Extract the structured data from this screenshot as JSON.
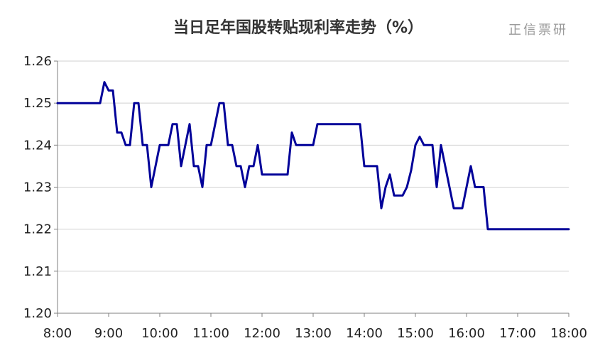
{
  "chart_data": {
    "type": "line",
    "title": "当日足年国股转贴现利率走势（%）",
    "watermark": "正信票研",
    "xlabel": "",
    "ylabel": "",
    "x_tick_labels": [
      "8:00",
      "9:00",
      "10:00",
      "11:00",
      "12:00",
      "13:00",
      "14:00",
      "15:00",
      "16:00",
      "17:00",
      "18:00"
    ],
    "y_tick_labels": [
      "1.20",
      "1.21",
      "1.22",
      "1.23",
      "1.24",
      "1.25",
      "1.26"
    ],
    "xlim": [
      "8:00",
      "18:00"
    ],
    "ylim": [
      1.2,
      1.26
    ],
    "grid": "horizontal",
    "line_color": "#000099",
    "series": [
      {
        "x": [
          "8:00",
          "8:50",
          "8:55",
          "9:00",
          "9:05",
          "9:10",
          "9:15",
          "9:20",
          "9:25",
          "9:30",
          "9:35",
          "9:40",
          "9:45",
          "9:50",
          "9:55",
          "10:00",
          "10:05",
          "10:10",
          "10:15",
          "10:20",
          "10:25",
          "10:30",
          "10:35",
          "10:40",
          "10:45",
          "10:50",
          "10:55",
          "11:00",
          "11:05",
          "11:10",
          "11:15",
          "11:20",
          "11:25",
          "11:30",
          "11:35",
          "11:40",
          "11:45",
          "11:50",
          "11:55",
          "12:00",
          "12:05",
          "12:10",
          "12:15",
          "12:20",
          "12:25",
          "12:30",
          "12:35",
          "12:40",
          "12:45",
          "12:50",
          "12:55",
          "13:00",
          "13:05",
          "13:10",
          "13:15",
          "13:20",
          "13:25",
          "13:30",
          "13:35",
          "13:40",
          "13:45",
          "13:50",
          "13:55",
          "14:00",
          "14:05",
          "14:10",
          "14:15",
          "14:20",
          "14:25",
          "14:30",
          "14:35",
          "14:40",
          "14:45",
          "14:50",
          "14:55",
          "15:00",
          "15:05",
          "15:10",
          "15:15",
          "15:20",
          "15:25",
          "15:30",
          "15:35",
          "15:40",
          "15:45",
          "15:50",
          "15:55",
          "16:00",
          "16:05",
          "16:10",
          "16:15",
          "16:20",
          "16:25",
          "16:30",
          "16:40",
          "17:00",
          "17:30",
          "18:00"
        ],
        "y": [
          1.25,
          1.25,
          1.255,
          1.253,
          1.253,
          1.243,
          1.243,
          1.24,
          1.24,
          1.25,
          1.25,
          1.24,
          1.24,
          1.23,
          1.235,
          1.24,
          1.24,
          1.24,
          1.245,
          1.245,
          1.235,
          1.24,
          1.245,
          1.235,
          1.235,
          1.23,
          1.24,
          1.24,
          1.245,
          1.25,
          1.25,
          1.24,
          1.24,
          1.235,
          1.235,
          1.23,
          1.235,
          1.235,
          1.24,
          1.233,
          1.233,
          1.233,
          1.233,
          1.233,
          1.233,
          1.233,
          1.243,
          1.24,
          1.24,
          1.24,
          1.24,
          1.24,
          1.245,
          1.245,
          1.245,
          1.245,
          1.245,
          1.245,
          1.245,
          1.245,
          1.245,
          1.245,
          1.245,
          1.235,
          1.235,
          1.235,
          1.235,
          1.225,
          1.23,
          1.233,
          1.228,
          1.228,
          1.228,
          1.23,
          1.234,
          1.24,
          1.242,
          1.24,
          1.24,
          1.24,
          1.23,
          1.24,
          1.235,
          1.23,
          1.225,
          1.225,
          1.225,
          1.23,
          1.235,
          1.23,
          1.23,
          1.23,
          1.22,
          1.22,
          1.22,
          1.22,
          1.22,
          1.22
        ]
      }
    ]
  }
}
